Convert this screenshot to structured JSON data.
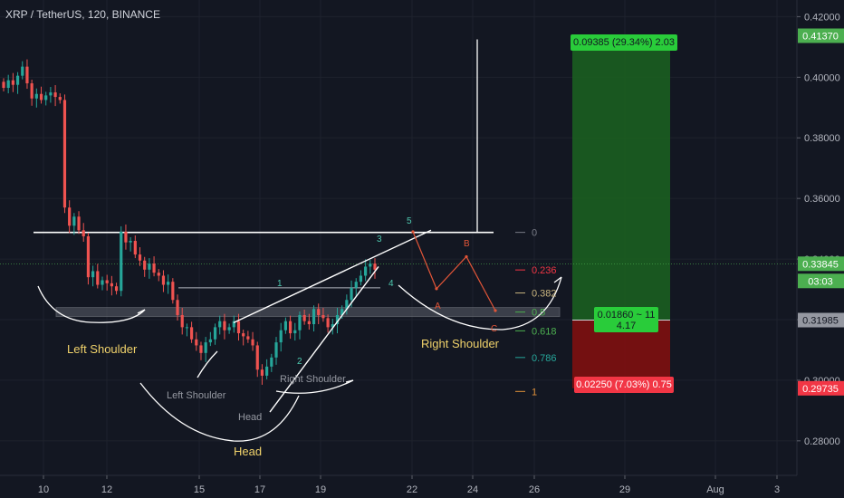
{
  "chart_data": {
    "type": "candlestick",
    "title": "XRP / TetherUS, 120, BINANCE",
    "ylim": [
      0.2686,
      0.4255
    ],
    "x_ticks": [
      "10",
      "12",
      "15",
      "17",
      "19",
      "22",
      "24",
      "26",
      "29",
      "Aug",
      "3"
    ],
    "y_ticks": [
      "0.42000",
      "0.40000",
      "0.38000",
      "0.36000",
      "0.34000",
      "0.32000",
      "0.30000",
      "0.28000"
    ],
    "price_badges": [
      {
        "label": "0.41370",
        "value": 0.4137,
        "color": "#4caf50"
      },
      {
        "label": "0.33845",
        "value": 0.33845,
        "color": "#4caf50"
      },
      {
        "label": "03:03",
        "value": 0.3318,
        "color": "#4caf50"
      },
      {
        "label": "0.31985",
        "value": 0.31985,
        "color": "#9598a1"
      },
      {
        "label": "0.29735",
        "value": 0.29735,
        "color": "#f23645"
      }
    ],
    "fib_levels": [
      {
        "label": "0",
        "value": 0.3488,
        "color": "#787b86"
      },
      {
        "label": "0.236",
        "value": 0.3364,
        "color": "#f23645"
      },
      {
        "label": "0.382",
        "value": 0.3288,
        "color": "#c8b47e"
      },
      {
        "label": "0.5",
        "value": 0.3225,
        "color": "#4caf50"
      },
      {
        "label": "0.618",
        "value": 0.3163,
        "color": "#4caf50"
      },
      {
        "label": "0.786",
        "value": 0.3075,
        "color": "#26a69a"
      },
      {
        "label": "1",
        "value": 0.2963,
        "color": "#e0913a"
      }
    ],
    "long_position": {
      "target_label": "0.09385 (29.34%) 2.03",
      "entry_label_1": "0.01860 ~ 11",
      "entry_label_2": "4.17",
      "stop_label": "0.02250 (7.03%) 0.75",
      "target_price": 0.4137,
      "entry_price": 0.31985,
      "stop_price": 0.29735
    },
    "annotations": [
      "Left Shoulder",
      "Right Shoulder",
      "Head",
      "Left Shoulder",
      "Right Shoulder",
      "Head",
      "1",
      "2",
      "3",
      "4",
      "5",
      "A",
      "B",
      "C"
    ],
    "close": [
      0.3965,
      0.399,
      0.3975,
      0.4005,
      0.4035,
      0.398,
      0.393,
      0.3945,
      0.3925,
      0.394,
      0.395,
      0.3935,
      0.3925,
      0.357,
      0.351,
      0.354,
      0.3495,
      0.3475,
      0.334,
      0.336,
      0.3315,
      0.333,
      0.332,
      0.331,
      0.3295,
      0.349,
      0.3455,
      0.346,
      0.3415,
      0.3395,
      0.3365,
      0.3385,
      0.3355,
      0.3345,
      0.3315,
      0.3325,
      0.3265,
      0.3215,
      0.3175,
      0.3175,
      0.3135,
      0.3115,
      0.309,
      0.3125,
      0.3135,
      0.3175,
      0.3195,
      0.3165,
      0.3175,
      0.3195,
      0.3155,
      0.3145,
      0.3135,
      0.3115,
      0.3035,
      0.3015,
      0.3045,
      0.3075,
      0.3125,
      0.3165,
      0.3195,
      0.3155,
      0.3165,
      0.3215,
      0.3195,
      0.3185,
      0.3235,
      0.3215,
      0.3205,
      0.3175,
      0.3185,
      0.3215,
      0.3235,
      0.3265,
      0.3305,
      0.3325,
      0.3345,
      0.3375,
      0.3385,
      0.3365
    ]
  }
}
